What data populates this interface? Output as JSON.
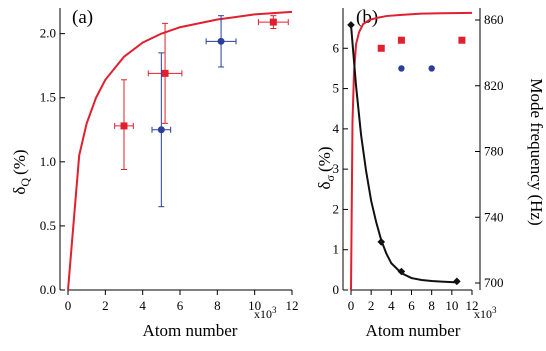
{
  "chart_data": [
    {
      "panel": "(a)",
      "type": "scatter",
      "xlabel": "Atom number",
      "x_multiplier": "x10",
      "x_multiplier_exp": "3",
      "ylabel_main": "δ",
      "ylabel_sub": "Q",
      "ylabel_unit": "(%)",
      "xlim": [
        0,
        12
      ],
      "ylim": [
        0,
        2.2
      ],
      "xticks": [
        0,
        2,
        4,
        6,
        8,
        10,
        12
      ],
      "xtick_labels": [
        "0",
        "2",
        "4",
        "6",
        "8",
        "10",
        "12"
      ],
      "yticks": [
        0,
        0.5,
        1.0,
        1.5,
        2.0
      ],
      "ytick_labels": [
        "0.0",
        "0.5",
        "1.0",
        "1.5",
        "2.0"
      ],
      "series": [
        {
          "marker": "square",
          "color": "#e0202f",
          "points": [
            {
              "x": 3.0,
              "y": 1.28,
              "xerr": 0.5,
              "yerr_low": 0.34,
              "yerr_high": 0.36
            },
            {
              "x": 5.2,
              "y": 1.69,
              "xerr": 0.9,
              "yerr_low": 0.39,
              "yerr_high": 0.39
            },
            {
              "x": 11.0,
              "y": 2.09,
              "xerr": 0.8,
              "yerr_low": 0.05,
              "yerr_high": 0.05
            }
          ]
        },
        {
          "marker": "circle",
          "color": "#2a3f9a",
          "points": [
            {
              "x": 5.0,
              "y": 1.25,
              "xerr": 0.5,
              "yerr_low": 0.6,
              "yerr_high": 0.6
            },
            {
              "x": 8.2,
              "y": 1.94,
              "xerr": 0.8,
              "yerr_low": 0.2,
              "yerr_high": 0.2
            }
          ]
        }
      ],
      "curve": {
        "color": "#e0202f",
        "x": [
          0,
          0.6,
          1.0,
          1.5,
          2.0,
          3.0,
          4.0,
          5.0,
          6.0,
          7.0,
          8.0,
          9.0,
          10.0,
          11.0,
          12.0
        ],
        "y": [
          0.0,
          1.05,
          1.3,
          1.5,
          1.64,
          1.82,
          1.93,
          2.0,
          2.05,
          2.08,
          2.11,
          2.13,
          2.15,
          2.16,
          2.17
        ]
      }
    },
    {
      "panel": "(b)",
      "type": "scatter",
      "xlabel": "Atom number",
      "x_multiplier": "x10",
      "x_multiplier_exp": "3",
      "ylabel_main": "δ",
      "ylabel_sub": "σ",
      "ylabel_unit": "(%)",
      "ylabel_right": "Mode frequency (Hz)",
      "xlim": [
        0,
        12
      ],
      "ylim": [
        0,
        7
      ],
      "ylim_right": [
        700,
        860
      ],
      "xticks": [
        0,
        2,
        4,
        6,
        8,
        10,
        12
      ],
      "xtick_labels": [
        "0",
        "2",
        "4",
        "6",
        "8",
        "10",
        "12"
      ],
      "yticks": [
        0,
        1,
        2,
        3,
        4,
        5,
        6
      ],
      "ytick_labels": [
        "0",
        "1",
        "2",
        "3",
        "4",
        "5",
        "6"
      ],
      "yticks_right": [
        700,
        740,
        780,
        820,
        860
      ],
      "ytick_labels_right": [
        "700",
        "740",
        "780",
        "820",
        "860"
      ],
      "series": [
        {
          "marker": "square",
          "color": "#e0202f",
          "points": [
            {
              "x": 3.0,
              "y": 6.0
            },
            {
              "x": 5.0,
              "y": 6.2
            },
            {
              "x": 11.0,
              "y": 6.2
            }
          ]
        },
        {
          "marker": "circle",
          "color": "#2a3f9a",
          "points": [
            {
              "x": 5.0,
              "y": 5.5
            },
            {
              "x": 8.0,
              "y": 5.5
            }
          ]
        },
        {
          "marker": "diamond",
          "color": "#111111",
          "axis": "right",
          "points": [
            {
              "x": 0.0,
              "y": 857
            },
            {
              "x": 3.0,
              "y": 725
            },
            {
              "x": 5.0,
              "y": 707
            },
            {
              "x": 10.5,
              "y": 701
            }
          ]
        }
      ],
      "curve": {
        "color": "#e0202f",
        "x": [
          0,
          0.15,
          0.3,
          0.5,
          0.8,
          1.2,
          1.8,
          2.5,
          3.5,
          5.0,
          7.0,
          9.0,
          12.0
        ],
        "y": [
          0.0,
          4.2,
          5.4,
          6.1,
          6.4,
          6.6,
          6.7,
          6.75,
          6.8,
          6.83,
          6.86,
          6.87,
          6.88
        ]
      },
      "curve_right": {
        "color": "#111111",
        "x": [
          0,
          0.5,
          1.0,
          1.5,
          2.0,
          2.5,
          3.0,
          3.5,
          4.0,
          5.0,
          6.0,
          7.0,
          8.0,
          9.0,
          10.0,
          10.5
        ],
        "y": [
          857,
          820,
          790,
          768,
          750,
          737,
          726,
          718,
          712,
          706,
          703,
          701.8,
          701.2,
          700.8,
          700.5,
          700.4
        ]
      }
    }
  ]
}
